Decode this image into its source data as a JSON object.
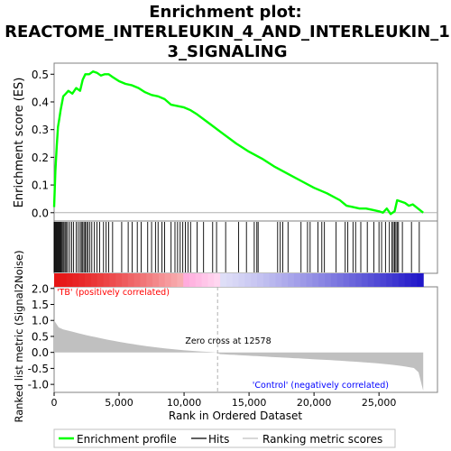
{
  "chart_data": {
    "type": "line",
    "title": "Enrichment plot: REACTOME_INTERLEUKIN_4_AND_INTERLEUKIN_13_SIGNALING",
    "title_lines": [
      "Enrichment plot:",
      "REACTOME_INTERLEUKIN_4_AND_INTERLEUKIN_1",
      "3_SIGNALING"
    ],
    "xlabel": "Rank in Ordered Dataset",
    "ylabel_top": "Enrichment score (ES)",
    "ylabel_bottom": "Ranked list metric (Signal2Noise)",
    "x_range": [
      0,
      29500
    ],
    "x_ticks": [
      0,
      5000,
      10000,
      15000,
      20000,
      25000
    ],
    "x_tick_labels": [
      "0",
      "5,000",
      "10,000",
      "15,000",
      "20,000",
      "25,000"
    ],
    "es_range": [
      -0.03,
      0.54
    ],
    "es_ticks": [
      0.0,
      0.1,
      0.2,
      0.3,
      0.4,
      0.5
    ],
    "es_tick_labels": [
      "0.0",
      "0.1",
      "0.2",
      "0.3",
      "0.4",
      "0.5"
    ],
    "metric_range": [
      -1.25,
      2.05
    ],
    "metric_ticks": [
      2.0,
      1.5,
      1.0,
      0.5,
      0.0,
      -0.5,
      -1.0
    ],
    "metric_tick_labels": [
      "2.0",
      "1.5",
      "1.0",
      "0.5",
      "0.0",
      "-0.5",
      "-1.0"
    ],
    "zero_cross_rank": 12578,
    "zero_cross_label": "Zero cross at 12578",
    "positive_label": "'TB' (positively correlated)",
    "negative_label": "'Control' (negatively correlated)",
    "dataset_size": 28400,
    "enrichment_profile": {
      "name": "Enrichment profile",
      "x": [
        0,
        100,
        200,
        300,
        400,
        500,
        700,
        900,
        1100,
        1400,
        1700,
        2000,
        2200,
        2400,
        2700,
        3000,
        3300,
        3600,
        3900,
        4200,
        4500,
        5000,
        5500,
        6000,
        6500,
        7000,
        7500,
        8000,
        8500,
        9000,
        9500,
        10000,
        10500,
        11000,
        12000,
        13000,
        14000,
        15000,
        16000,
        17000,
        18000,
        19000,
        20000,
        21000,
        22000,
        22500,
        23000,
        23500,
        24000,
        24500,
        25000,
        25300,
        25600,
        25900,
        26200,
        26400,
        26700,
        27000,
        27300,
        27600,
        28000,
        28400
      ],
      "y": [
        0.02,
        0.15,
        0.24,
        0.31,
        0.34,
        0.37,
        0.42,
        0.43,
        0.44,
        0.43,
        0.45,
        0.44,
        0.48,
        0.5,
        0.5,
        0.51,
        0.505,
        0.495,
        0.5,
        0.5,
        0.49,
        0.475,
        0.465,
        0.46,
        0.45,
        0.435,
        0.425,
        0.42,
        0.41,
        0.39,
        0.385,
        0.38,
        0.37,
        0.355,
        0.32,
        0.285,
        0.25,
        0.22,
        0.195,
        0.165,
        0.14,
        0.115,
        0.09,
        0.07,
        0.045,
        0.025,
        0.02,
        0.015,
        0.015,
        0.01,
        0.005,
        0.0,
        0.015,
        -0.005,
        0.005,
        0.045,
        0.04,
        0.035,
        0.025,
        0.03,
        0.015,
        0.0
      ]
    },
    "hits": [
      0,
      60,
      120,
      180,
      240,
      310,
      380,
      450,
      520,
      600,
      680,
      760,
      850,
      950,
      1050,
      1200,
      1350,
      1500,
      1700,
      1850,
      2000,
      2100,
      2200,
      2300,
      2400,
      2500,
      2600,
      2750,
      2900,
      3100,
      3300,
      3500,
      3800,
      4000,
      4200,
      4500,
      5200,
      5700,
      6000,
      6400,
      6700,
      7200,
      7500,
      7800,
      8000,
      8300,
      8500,
      9000,
      9300,
      9500,
      9700,
      9900,
      10100,
      10300,
      10500,
      11000,
      11500,
      12200,
      12500,
      13200,
      14200,
      14800,
      15400,
      15600,
      15700,
      17200,
      17400,
      17600,
      18000,
      19000,
      19500,
      19700,
      20300,
      20600,
      20800,
      21700,
      22400,
      22600,
      23000,
      23200,
      23600,
      24100,
      24600,
      25000,
      25200,
      25500,
      25800,
      26000,
      26100,
      26200,
      26300,
      26400,
      26500,
      26800,
      27500,
      28100
    ],
    "legend": [
      "Enrichment profile",
      "Hits",
      "Ranking metric scores"
    ],
    "legend_position": "bottom",
    "colors": {
      "profile": "#00ff00",
      "hits": "#000000",
      "metric_fill": "#c0c0c0",
      "zero_line": "#b0b0b0",
      "positive_text": "#ff0000",
      "negative_text": "#0000ff"
    }
  }
}
